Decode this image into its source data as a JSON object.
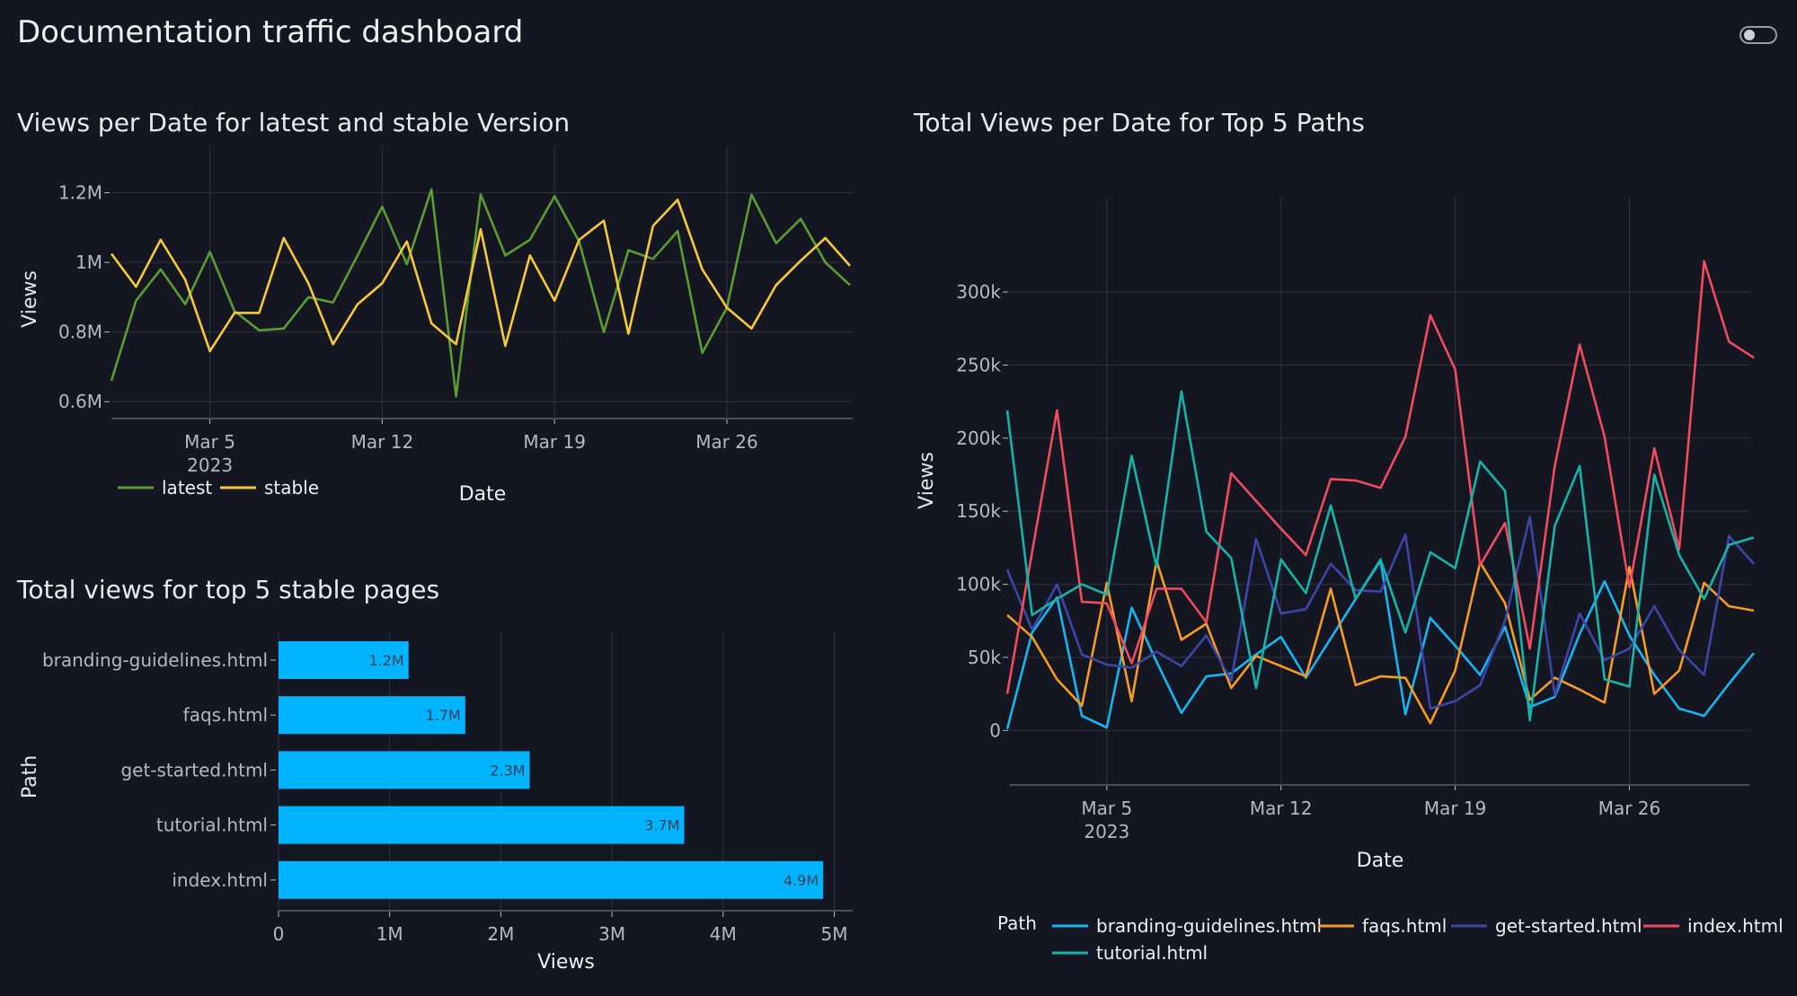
{
  "header": {
    "title": "Documentation traffic dashboard",
    "theme_toggle_on": false
  },
  "colors": {
    "latest": "#5b9c33",
    "stable": "#f6c83b",
    "branding-guidelines.html": "#19b5f1",
    "faqs.html": "#f79a26",
    "get-started.html": "#3d45a8",
    "index.html": "#f14c5e",
    "tutorial.html": "#17b3a8",
    "bar": "#00b4ff"
  },
  "chart_data": [
    {
      "type": "line",
      "title": "Views per Date for latest and stable Version",
      "xlabel": "Date",
      "ylabel": "Views",
      "x_tick_labels": [
        "Mar 5",
        "Mar 12",
        "Mar 19",
        "Mar 26"
      ],
      "x_tick_sublabel": "2023",
      "y_tick_labels": [
        "0.6M",
        "0.8M",
        "1M",
        "1.2M"
      ],
      "ylim": [
        580000,
        1230000
      ],
      "x": [
        "2023-03-01",
        "2023-03-02",
        "2023-03-03",
        "2023-03-04",
        "2023-03-05",
        "2023-03-06",
        "2023-03-07",
        "2023-03-08",
        "2023-03-09",
        "2023-03-10",
        "2023-03-11",
        "2023-03-12",
        "2023-03-13",
        "2023-03-14",
        "2023-03-15",
        "2023-03-16",
        "2023-03-17",
        "2023-03-18",
        "2023-03-19",
        "2023-03-20",
        "2023-03-21",
        "2023-03-22",
        "2023-03-23",
        "2023-03-24",
        "2023-03-25",
        "2023-03-26",
        "2023-03-27",
        "2023-03-28",
        "2023-03-29",
        "2023-03-30",
        "2023-03-31"
      ],
      "legend": "bottom-left",
      "grid": true,
      "series": [
        {
          "name": "latest",
          "values": [
            660000,
            890000,
            980000,
            880000,
            1030000,
            860000,
            805000,
            810000,
            900000,
            885000,
            1020000,
            1160000,
            995000,
            1210000,
            615000,
            1195000,
            1020000,
            1065000,
            1190000,
            1060000,
            800000,
            1035000,
            1010000,
            1090000,
            740000,
            870000,
            1195000,
            1055000,
            1125000,
            1000000,
            935000
          ]
        },
        {
          "name": "stable",
          "values": [
            1025000,
            930000,
            1065000,
            950000,
            745000,
            855000,
            855000,
            1070000,
            940000,
            765000,
            880000,
            940000,
            1060000,
            825000,
            765000,
            1095000,
            760000,
            1020000,
            890000,
            1065000,
            1120000,
            795000,
            1105000,
            1180000,
            980000,
            870000,
            810000,
            935000,
            1005000,
            1070000,
            990000
          ]
        }
      ]
    },
    {
      "type": "bar",
      "orientation": "horizontal",
      "title": "Total views for top 5 stable pages",
      "xlabel": "Views",
      "ylabel": "Path",
      "categories": [
        "branding-guidelines.html",
        "faqs.html",
        "get-started.html",
        "tutorial.html",
        "index.html"
      ],
      "values": [
        1170000,
        1680000,
        2260000,
        3650000,
        4900000
      ],
      "data_labels": [
        "1.2M",
        "1.7M",
        "2.3M",
        "3.7M",
        "4.9M"
      ],
      "x_tick_labels": [
        "0",
        "1M",
        "2M",
        "3M",
        "4M",
        "5M"
      ],
      "xlim": [
        0,
        5150000
      ],
      "grid": true
    },
    {
      "type": "line",
      "title": "Total Views per Date for Top 5 Paths",
      "xlabel": "Date",
      "ylabel": "Views",
      "x_tick_labels": [
        "Mar 5",
        "Mar 12",
        "Mar 19",
        "Mar 26"
      ],
      "x_tick_sublabel": "2023",
      "y_tick_labels": [
        "0",
        "50k",
        "100k",
        "150k",
        "200k",
        "250k",
        "300k"
      ],
      "ylim": [
        -17000,
        340000
      ],
      "legend_title": "Path",
      "legend": "bottom",
      "grid": true,
      "series": [
        {
          "name": "branding-guidelines.html",
          "values": [
            1000,
            67000,
            91000,
            10000,
            2000,
            84000,
            47000,
            12000,
            37000,
            39000,
            52000,
            64000,
            36000,
            63000,
            90000,
            116000,
            11000,
            77000,
            58000,
            38000,
            71000,
            16000,
            23000,
            66000,
            102000,
            65000,
            38000,
            15000,
            10000,
            32000,
            53000
          ]
        },
        {
          "name": "faqs.html",
          "values": [
            79000,
            64000,
            35000,
            17000,
            101000,
            20000,
            116000,
            62000,
            73000,
            29000,
            51000,
            44000,
            37000,
            97000,
            31000,
            37000,
            36000,
            5000,
            41000,
            115000,
            87000,
            21000,
            36000,
            28000,
            19000,
            112000,
            25000,
            41000,
            101000,
            85000,
            82000
          ]
        },
        {
          "name": "get-started.html",
          "values": [
            110000,
            69000,
            100000,
            52000,
            45000,
            43000,
            54000,
            44000,
            65000,
            34000,
            131000,
            80000,
            83000,
            114000,
            96000,
            95000,
            134000,
            15000,
            20000,
            31000,
            75000,
            146000,
            24000,
            80000,
            48000,
            56000,
            85000,
            55000,
            38000,
            133000,
            114000
          ]
        },
        {
          "name": "index.html",
          "values": [
            25000,
            122000,
            219000,
            88000,
            87000,
            46000,
            97000,
            97000,
            74000,
            176000,
            157000,
            138000,
            120000,
            172000,
            171000,
            166000,
            201000,
            284000,
            247000,
            113000,
            142000,
            56000,
            181000,
            264000,
            201000,
            98000,
            193000,
            124000,
            321000,
            266000,
            255000
          ]
        },
        {
          "name": "tutorial.html",
          "values": [
            219000,
            79000,
            90000,
            100000,
            93000,
            188000,
            112000,
            232000,
            136000,
            118000,
            29000,
            117000,
            94000,
            154000,
            90000,
            117000,
            67000,
            122000,
            111000,
            184000,
            164000,
            7000,
            140000,
            181000,
            35000,
            30000,
            175000,
            120000,
            90000,
            127000,
            132000
          ]
        }
      ]
    }
  ]
}
